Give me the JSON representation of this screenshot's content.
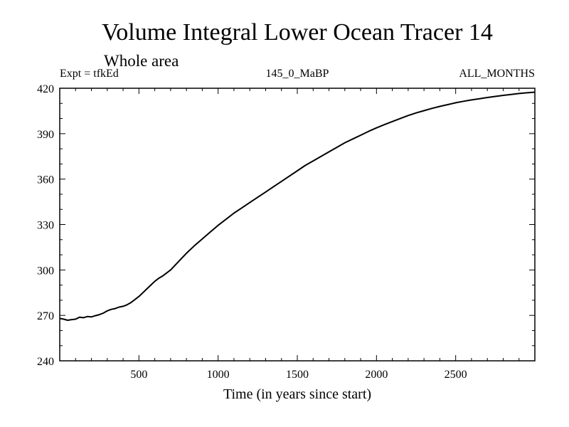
{
  "header": {
    "title": "Volume Integral Lower Ocean Tracer 14",
    "subtitle": "Whole area",
    "expt": "Expt = tfkEd",
    "period": "145_0_MaBP",
    "months": "ALL_MONTHS"
  },
  "chart_data": {
    "type": "line",
    "title": "Volume Integral Lower Ocean Tracer 14",
    "xlabel": "Time (in years since start)",
    "ylabel": "",
    "xlim": [
      0,
      3000
    ],
    "ylim": [
      240,
      420
    ],
    "xticks": [
      500,
      1000,
      1500,
      2000,
      2500
    ],
    "yticks": [
      240,
      270,
      300,
      330,
      360,
      390,
      420
    ],
    "grid": false,
    "series": [
      {
        "color": "#000000",
        "x": [
          0,
          25,
          50,
          75,
          100,
          125,
          150,
          175,
          200,
          225,
          250,
          275,
          300,
          325,
          350,
          375,
          400,
          425,
          450,
          475,
          500,
          525,
          550,
          575,
          600,
          625,
          650,
          700,
          750,
          800,
          850,
          900,
          950,
          1000,
          1050,
          1100,
          1150,
          1200,
          1250,
          1300,
          1350,
          1400,
          1450,
          1500,
          1550,
          1600,
          1650,
          1700,
          1750,
          1800,
          1850,
          1900,
          1950,
          2000,
          2050,
          2100,
          2150,
          2200,
          2250,
          2300,
          2350,
          2400,
          2450,
          2500,
          2550,
          2600,
          2650,
          2700,
          2750,
          2800,
          2850,
          2900,
          2950,
          3000
        ],
        "y": [
          268,
          267.5,
          266.8,
          267.2,
          267.5,
          268.8,
          268.5,
          269.3,
          269.0,
          269.8,
          270.5,
          271.5,
          273.0,
          274.0,
          274.5,
          275.5,
          276.0,
          277.0,
          278.5,
          280.5,
          282.5,
          285.0,
          287.5,
          290.0,
          292.5,
          294.5,
          296.0,
          300.0,
          305.5,
          311.0,
          316.0,
          320.5,
          325.0,
          329.5,
          333.5,
          337.5,
          341.0,
          344.5,
          348.0,
          351.5,
          355.0,
          358.5,
          362.0,
          365.5,
          369.0,
          372.0,
          375.0,
          378.0,
          381.0,
          384.0,
          386.5,
          389.0,
          391.5,
          393.8,
          396.0,
          398.0,
          400.0,
          402.0,
          403.7,
          405.2,
          406.7,
          408.0,
          409.2,
          410.4,
          411.4,
          412.3,
          413.1,
          413.9,
          414.6,
          415.3,
          415.9,
          416.5,
          417.0,
          417.4
        ]
      }
    ]
  }
}
